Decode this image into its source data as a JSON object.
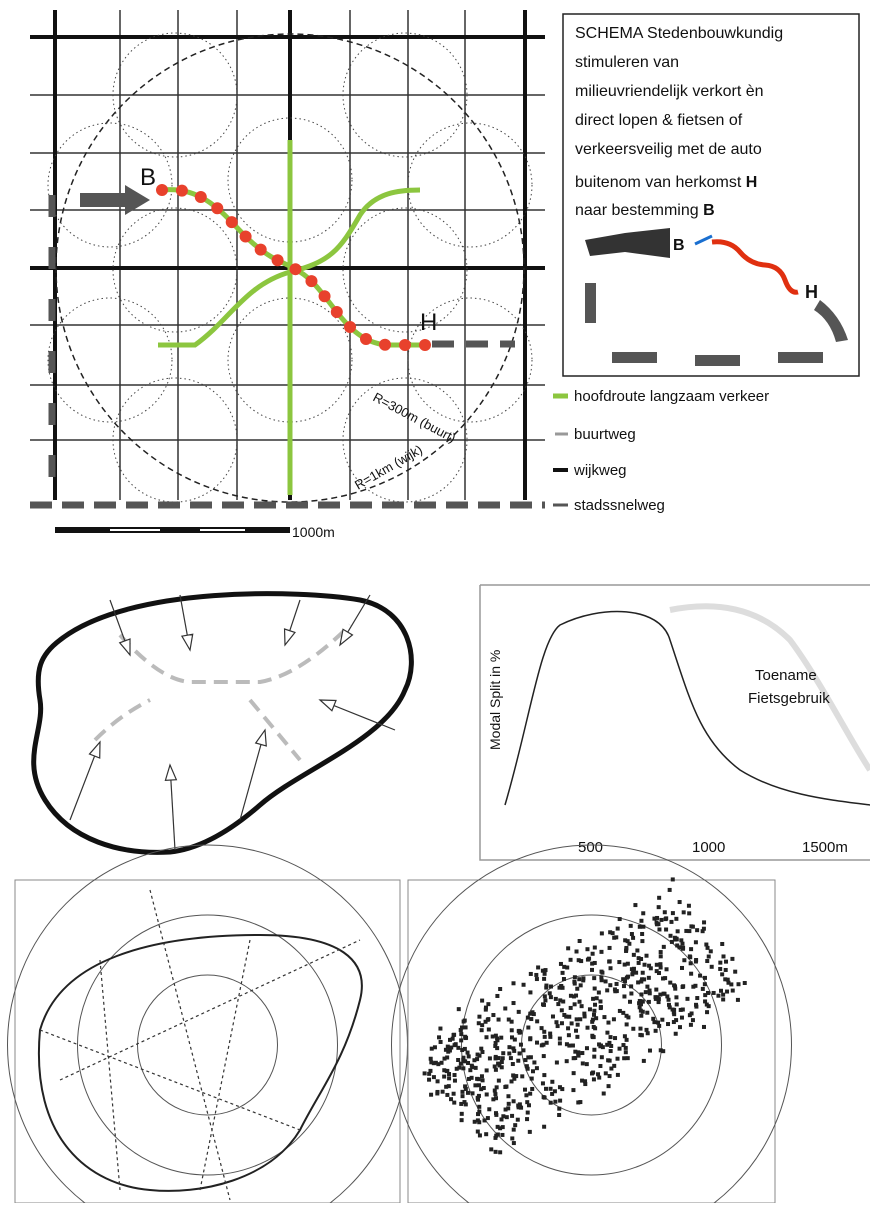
{
  "map": {
    "origin_label": "B",
    "destination_label": "H",
    "radius_neighbourhood": "R=300m (buurt)",
    "radius_district": "R=1km (wijk)",
    "scale": "1000m"
  },
  "schema": {
    "lines": [
      "SCHEMA Stedenbouwkundig",
      "stimuleren van",
      "milieuvriendelijk verkort èn",
      "direct  lopen & fietsen of",
      "verkeersveilig met de auto"
    ],
    "line_h": "buitenom van herkomst",
    "bold_h": "H",
    "line_b": "naar bestemming",
    "bold_b": "B",
    "icon_b": "B",
    "icon_h": "H"
  },
  "legend": [
    "hoofdroute langzaam verkeer",
    "buurtweg",
    "wijkweg",
    "stadssnelweg"
  ],
  "modal_chart": {
    "y_label": "Modal Split in %",
    "annotation": [
      "Toename",
      "Fietsgebruik"
    ],
    "x_labels": [
      "500",
      "1000",
      "1500m"
    ]
  }
}
